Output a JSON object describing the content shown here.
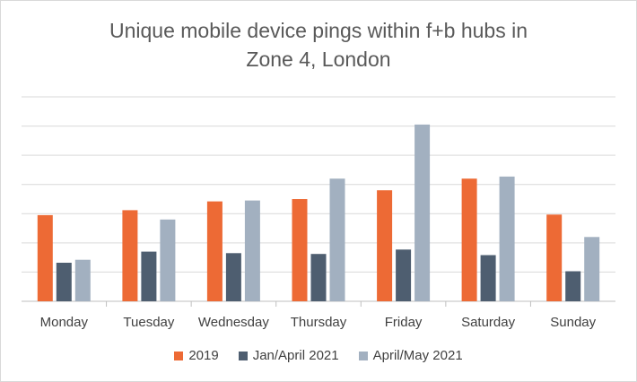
{
  "chart_data": {
    "type": "bar",
    "title_lines": [
      "Unique mobile device pings within f+b hubs in",
      "Zone 4, London"
    ],
    "xlabel": "",
    "ylabel": "",
    "categories": [
      "Monday",
      "Tuesday",
      "Wednesday",
      "Thursday",
      "Friday",
      "Saturday",
      "Sunday"
    ],
    "series": [
      {
        "name": "2019",
        "color": "#ed6a35",
        "values": [
          2.95,
          3.12,
          3.42,
          3.5,
          3.8,
          4.2,
          2.97
        ]
      },
      {
        "name": "Jan/April 2021",
        "color": "#4e5e70",
        "values": [
          1.32,
          1.7,
          1.65,
          1.62,
          1.77,
          1.58,
          1.03
        ]
      },
      {
        "name": "April/May 2021",
        "color": "#a2b0c0",
        "values": [
          1.42,
          2.8,
          3.45,
          4.2,
          6.05,
          4.27,
          2.2
        ]
      }
    ],
    "ylim": [
      0,
      7
    ],
    "y_gridlines": [
      0,
      1,
      2,
      3,
      4,
      5,
      6,
      7
    ],
    "y_tick_labels_visible": false,
    "grid": true,
    "legend_position": "bottom"
  }
}
